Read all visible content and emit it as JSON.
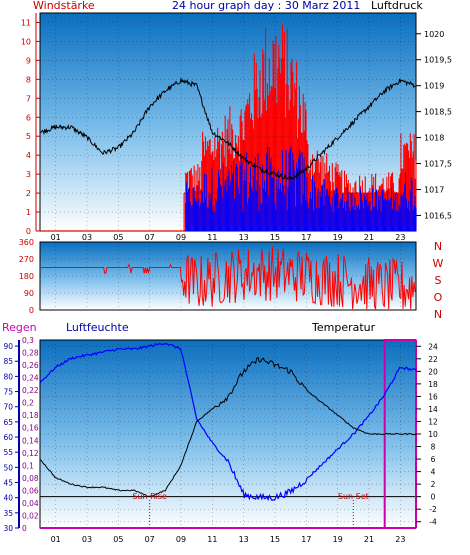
{
  "header": {
    "title": "24 hour graph day : 30 Marz 2011",
    "left_label": "Windstärke",
    "right_label": "Luftdruck"
  },
  "colors": {
    "red": "#ff0000",
    "blue": "#0000ff",
    "black": "#000000",
    "magenta": "#cc00aa",
    "navy": "#000088",
    "grid": "#000000"
  },
  "chart_data": [
    {
      "type": "line",
      "title": "24 hour graph day : 30 Marz 2011",
      "x_ticks": [
        "01",
        "03",
        "05",
        "07",
        "09",
        "11",
        "13",
        "15",
        "17",
        "19",
        "21",
        "23"
      ],
      "xlim": [
        0,
        24
      ],
      "left_axis": {
        "label": "Windstärke",
        "ticks": [
          "0",
          "1",
          "2",
          "3",
          "4",
          "5",
          "6",
          "7",
          "8",
          "9",
          "10",
          "11"
        ],
        "range": [
          0,
          11.5
        ]
      },
      "right_axis": {
        "label": "Luftdruck",
        "ticks": [
          "1016,5",
          "1017",
          "1017,5",
          "1018",
          "1018,5",
          "1019",
          "1019,5",
          "1020"
        ],
        "range": [
          1016.2,
          1020.4
        ]
      },
      "series": [
        {
          "name": "Luftdruck",
          "axis": "right",
          "x": [
            0,
            1,
            2,
            3,
            4,
            5,
            6,
            7,
            8,
            9,
            10,
            11,
            12,
            13,
            14,
            15,
            16,
            17,
            18,
            19,
            20,
            21,
            22,
            23,
            24
          ],
          "y": [
            1018.1,
            1018.2,
            1018.2,
            1018.0,
            1017.7,
            1017.8,
            1018.1,
            1018.6,
            1018.9,
            1019.1,
            1019.0,
            1018.1,
            1017.9,
            1017.6,
            1017.4,
            1017.3,
            1017.2,
            1017.4,
            1017.7,
            1018.0,
            1018.3,
            1018.6,
            1018.9,
            1019.1,
            1019.0
          ]
        },
        {
          "name": "wind_gust",
          "axis": "left",
          "color": "red"
        },
        {
          "name": "wind_avg",
          "axis": "left",
          "color": "blue"
        }
      ]
    },
    {
      "type": "line",
      "x_ticks": [
        "01",
        "03",
        "05",
        "07",
        "09",
        "11",
        "13",
        "15",
        "17",
        "19",
        "21",
        "23"
      ],
      "left_axis": {
        "ticks": [
          "0",
          "90",
          "180",
          "270",
          "360"
        ],
        "range": [
          0,
          360
        ]
      },
      "right_letters": [
        "N",
        "W",
        "S",
        "O",
        "N"
      ],
      "series": [
        {
          "name": "wind_direction",
          "color": "red",
          "x": [
            0,
            3,
            4,
            5,
            6,
            7,
            8,
            9,
            10,
            12,
            14,
            16,
            18,
            20,
            22,
            24
          ],
          "y": [
            225,
            225,
            225,
            200,
            225,
            225,
            210,
            180,
            140,
            180,
            200,
            190,
            170,
            150,
            120,
            120
          ]
        }
      ]
    },
    {
      "type": "line",
      "labels": {
        "regen": "Regen",
        "luftfeuchte": "Luftfeuchte",
        "temperatur": "Temperatur",
        "sun_rise": "Sun Rise",
        "sun_set": "Sun Set"
      },
      "x_ticks": [
        "01",
        "03",
        "05",
        "07",
        "09",
        "11",
        "13",
        "15",
        "17",
        "19",
        "21",
        "23"
      ],
      "humidity_axis": {
        "ticks": [
          "30",
          "35",
          "40",
          "45",
          "50",
          "55",
          "60",
          "65",
          "70",
          "75",
          "80",
          "85",
          "90"
        ],
        "range": [
          30,
          92
        ]
      },
      "rain_axis": {
        "ticks": [
          "0",
          "0,02",
          "0,04",
          "0,06",
          "0,08",
          "0,1",
          "0,12",
          "0,14",
          "0,16",
          "0,18",
          "0,2",
          "0,22",
          "0,24",
          "0,26",
          "0,28",
          "0,3"
        ],
        "range": [
          0,
          0.3
        ]
      },
      "temp_axis": {
        "ticks": [
          "-4",
          "-2",
          "0",
          "2",
          "4",
          "6",
          "8",
          "10",
          "12",
          "14",
          "16",
          "18",
          "20",
          "22",
          "24"
        ],
        "range": [
          -5,
          25
        ]
      },
      "sun_rise": 7,
      "sun_set": 20,
      "series": [
        {
          "name": "Luftfeuchte",
          "color": "blue",
          "axis": "humidity",
          "x": [
            0,
            1,
            2,
            3,
            4,
            5,
            6,
            7,
            8,
            9,
            10,
            11,
            12,
            13,
            14,
            15,
            16,
            17,
            18,
            19,
            20,
            21,
            22,
            23,
            24
          ],
          "y": [
            78,
            83,
            86,
            87,
            88,
            89,
            89,
            90,
            91,
            89,
            66,
            58,
            52,
            41,
            40,
            40,
            42,
            46,
            51,
            56,
            61,
            67,
            74,
            83,
            82
          ]
        },
        {
          "name": "Temperatur",
          "color": "black",
          "axis": "temp",
          "x": [
            0,
            1,
            2,
            3,
            4,
            5,
            6,
            7,
            8,
            9,
            10,
            11,
            12,
            13,
            14,
            15,
            16,
            17,
            18,
            19,
            20,
            21,
            22,
            23,
            24
          ],
          "y": [
            6,
            3,
            2,
            1.5,
            1.5,
            1,
            1,
            0,
            1,
            5,
            12,
            14,
            16,
            20,
            22,
            21,
            20,
            17,
            15,
            13,
            11,
            10,
            10,
            10,
            10
          ]
        },
        {
          "name": "Regen",
          "color": "magenta",
          "axis": "rain",
          "x": [
            0,
            22,
            22,
            24
          ],
          "y": [
            0,
            0,
            0.3,
            0.3
          ]
        }
      ]
    }
  ]
}
